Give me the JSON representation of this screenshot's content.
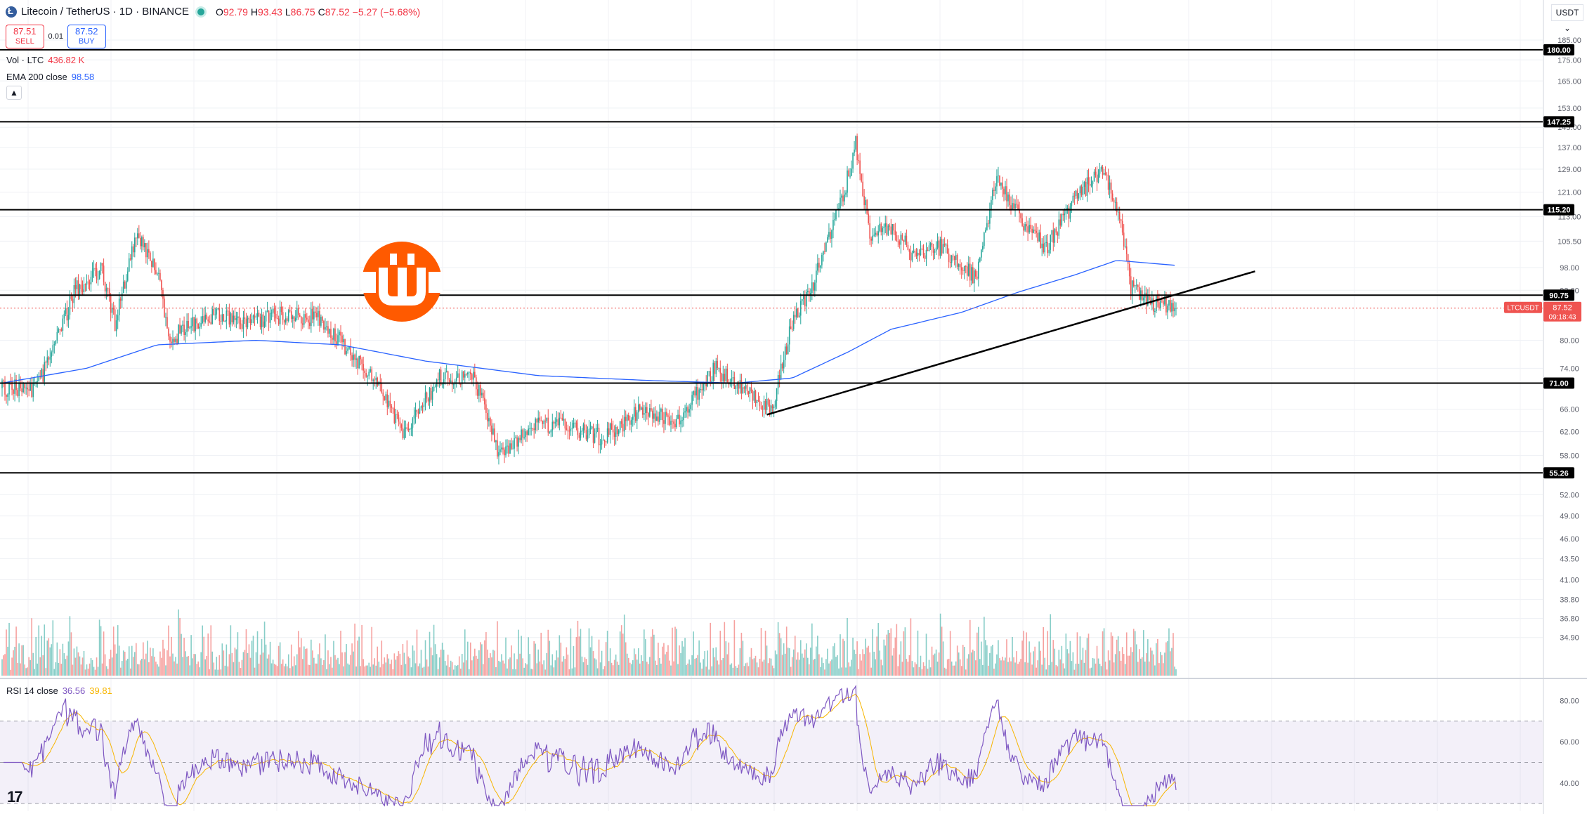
{
  "header": {
    "title": "Litecoin / TetherUS · 1D · BINANCE",
    "open_label": "O",
    "open": "92.79",
    "high_label": "H",
    "high": "93.43",
    "low_label": "L",
    "low": "86.75",
    "close_label": "C",
    "close": "87.52",
    "change": "−5.27 (−5.68%)"
  },
  "trade": {
    "sell_price": "87.51",
    "sell_label": "SELL",
    "spread": "0.01",
    "buy_price": "87.52",
    "buy_label": "BUY"
  },
  "legends": {
    "volume_label": "Vol · LTC",
    "volume_value": "436.82 K",
    "ema_label": "EMA 200 close",
    "ema_value": "98.58",
    "rsi_label": "RSI 14 close",
    "rsi_value": "36.56",
    "rsi_ma_value": "39.81",
    "collapse_icon": "▲"
  },
  "axis_unit": "USDT ⌄",
  "symbol_tag": {
    "symbol": "LTCUSDT",
    "price": "87.52",
    "countdown": "09:18:43"
  },
  "colors": {
    "up": "#26a69a",
    "down": "#ef5350",
    "ema": "#2962ff",
    "rsi": "#7e57c2",
    "rsi_ma": "#f7b500",
    "brand": "#ff5a00"
  },
  "tv_logo": "17",
  "chart_data": [
    {
      "type": "candlestick",
      "title": "Litecoin / TetherUS · 1D · BINANCE",
      "ylim": [
        31.5,
        192
      ],
      "log_scale": true,
      "price_ticks": [
        185.0,
        175.0,
        165.0,
        153.0,
        145.0,
        137.0,
        129.0,
        121.0,
        113.0,
        105.5,
        98.0,
        92.0,
        80.0,
        74.0,
        66.0,
        62.0,
        58.0,
        52.0,
        49.0,
        46.0,
        43.5,
        41.0,
        38.8,
        36.8,
        34.9
      ],
      "horizontal_levels": [
        {
          "value": 180.0,
          "label": "180.00"
        },
        {
          "value": 147.25,
          "label": "147.25"
        },
        {
          "value": 115.2,
          "label": "115.20"
        },
        {
          "value": 90.75,
          "label": "90.75"
        },
        {
          "value": 71.0,
          "label": "71.00"
        },
        {
          "value": 55.26,
          "label": "55.26"
        }
      ],
      "trendline": [
        {
          "bar": 542,
          "price": 65
        },
        {
          "bar": 888,
          "price": 97
        }
      ],
      "candle_count": 833,
      "ohlc_anchors": [
        {
          "bar": 0,
          "price": 70
        },
        {
          "bar": 25,
          "price": 70
        },
        {
          "bar": 52,
          "price": 92
        },
        {
          "bar": 70,
          "price": 98
        },
        {
          "bar": 80,
          "price": 84
        },
        {
          "bar": 95,
          "price": 108
        },
        {
          "bar": 110,
          "price": 98
        },
        {
          "bar": 118,
          "price": 80
        },
        {
          "bar": 145,
          "price": 86
        },
        {
          "bar": 175,
          "price": 84
        },
        {
          "bar": 200,
          "price": 86
        },
        {
          "bar": 225,
          "price": 85
        },
        {
          "bar": 260,
          "price": 73
        },
        {
          "bar": 285,
          "price": 62
        },
        {
          "bar": 310,
          "price": 72
        },
        {
          "bar": 335,
          "price": 72
        },
        {
          "bar": 352,
          "price": 58
        },
        {
          "bar": 375,
          "price": 63
        },
        {
          "bar": 400,
          "price": 63
        },
        {
          "bar": 425,
          "price": 61
        },
        {
          "bar": 455,
          "price": 66
        },
        {
          "bar": 480,
          "price": 64
        },
        {
          "bar": 505,
          "price": 74
        },
        {
          "bar": 535,
          "price": 68
        },
        {
          "bar": 545,
          "price": 66
        },
        {
          "bar": 560,
          "price": 84
        },
        {
          "bar": 575,
          "price": 94
        },
        {
          "bar": 595,
          "price": 118
        },
        {
          "bar": 605,
          "price": 138
        },
        {
          "bar": 615,
          "price": 107
        },
        {
          "bar": 630,
          "price": 110
        },
        {
          "bar": 645,
          "price": 102
        },
        {
          "bar": 665,
          "price": 104
        },
        {
          "bar": 690,
          "price": 95
        },
        {
          "bar": 705,
          "price": 126
        },
        {
          "bar": 722,
          "price": 112
        },
        {
          "bar": 740,
          "price": 104
        },
        {
          "bar": 760,
          "price": 118
        },
        {
          "bar": 780,
          "price": 130
        },
        {
          "bar": 790,
          "price": 117
        },
        {
          "bar": 800,
          "price": 93
        },
        {
          "bar": 815,
          "price": 89
        },
        {
          "bar": 833,
          "price": 87.5
        }
      ],
      "ema200_anchors": [
        {
          "bar": 0,
          "price": 71
        },
        {
          "bar": 60,
          "price": 74
        },
        {
          "bar": 110,
          "price": 79
        },
        {
          "bar": 180,
          "price": 80
        },
        {
          "bar": 240,
          "price": 79
        },
        {
          "bar": 300,
          "price": 75.5
        },
        {
          "bar": 380,
          "price": 72.5
        },
        {
          "bar": 460,
          "price": 71.5
        },
        {
          "bar": 520,
          "price": 71
        },
        {
          "bar": 560,
          "price": 72
        },
        {
          "bar": 600,
          "price": 77.5
        },
        {
          "bar": 630,
          "price": 82.5
        },
        {
          "bar": 680,
          "price": 86.5
        },
        {
          "bar": 720,
          "price": 91.5
        },
        {
          "bar": 760,
          "price": 96
        },
        {
          "bar": 790,
          "price": 100
        },
        {
          "bar": 833,
          "price": 98.58
        }
      ]
    },
    {
      "type": "bar",
      "title": "Vol · LTC",
      "last_value": "436.82 K"
    },
    {
      "type": "line",
      "title": "RSI 14 close",
      "ylim": [
        28,
        88
      ],
      "y_ticks": [
        80.0,
        60.0,
        40.0
      ],
      "band": [
        30,
        70
      ],
      "midline": 50,
      "last_values": {
        "rsi": 36.56,
        "rsi_ma": 39.81
      }
    }
  ]
}
